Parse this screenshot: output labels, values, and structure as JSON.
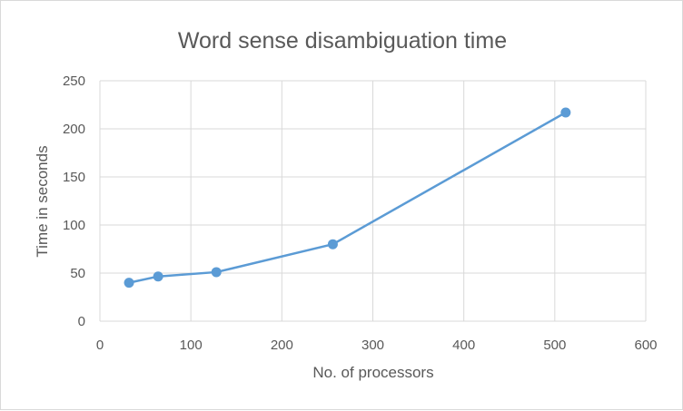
{
  "chart_data": {
    "type": "scatter",
    "title": "Word sense disambiguation time",
    "xlabel": "No. of processors",
    "ylabel": "Time in seconds",
    "xlim": [
      0,
      600
    ],
    "ylim": [
      0,
      250
    ],
    "xticks": [
      0,
      100,
      200,
      300,
      400,
      500,
      600
    ],
    "yticks": [
      0,
      50,
      100,
      150,
      200,
      250
    ],
    "grid": true,
    "series": [
      {
        "x": [
          32,
          64,
          128,
          256,
          512
        ],
        "y": [
          40,
          46.5,
          51,
          80,
          217
        ],
        "color": "#5b9bd5",
        "line": true,
        "markers": true
      }
    ]
  }
}
